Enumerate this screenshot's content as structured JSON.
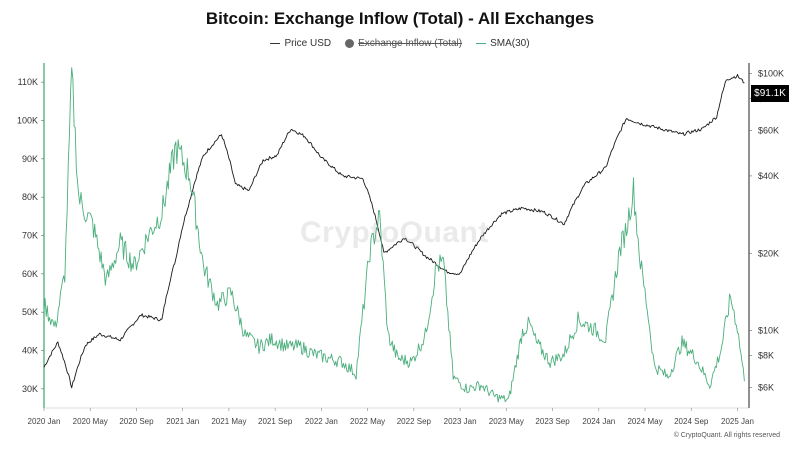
{
  "title": "Bitcoin: Exchange Inflow (Total) - All Exchanges",
  "legend": {
    "price": "Price USD",
    "inflow": "Exchange Inflow (Total)",
    "sma": "SMA(30)"
  },
  "watermark": "CryptoQuant",
  "price_badge": "$91.1K",
  "copyright": "© CryptoQuant. All rights reserved",
  "colors": {
    "price": "#1a1a1a",
    "sma": "#4caf7d",
    "axis_accent": "#3aa56e"
  },
  "chart_data": {
    "type": "line",
    "title": "Bitcoin: Exchange Inflow (Total) - All Exchanges",
    "x_ticks": [
      "2020 Jan",
      "2020 May",
      "2020 Sep",
      "2021 Jan",
      "2021 May",
      "2021 Sep",
      "2022 Jan",
      "2022 May",
      "2022 Sep",
      "2023 Jan",
      "2023 May",
      "2023 Sep",
      "2024 Jan",
      "2024 May",
      "2024 Sep",
      "2025 Jan"
    ],
    "y_left": {
      "ticks": [
        "30K",
        "40K",
        "50K",
        "60K",
        "70K",
        "80K",
        "90K",
        "100K",
        "110K"
      ],
      "range": [
        25000,
        115000
      ]
    },
    "y_right": {
      "ticks": [
        "$6K",
        "$8K",
        "$10K",
        "$20K",
        "$40K",
        "$60K",
        "$80K",
        "$100K"
      ],
      "scale": "log",
      "range": [
        5000,
        110000
      ]
    },
    "series": [
      {
        "name": "Price USD",
        "axis": "right",
        "x": [
          2020.0,
          2020.1,
          2020.2,
          2020.3,
          2020.4,
          2020.55,
          2020.7,
          2020.85,
          2020.95,
          2021.05,
          2021.15,
          2021.28,
          2021.38,
          2021.48,
          2021.58,
          2021.68,
          2021.78,
          2021.88,
          2022.0,
          2022.15,
          2022.3,
          2022.45,
          2022.6,
          2022.75,
          2022.9,
          2023.0,
          2023.15,
          2023.3,
          2023.45,
          2023.6,
          2023.75,
          2023.9,
          2024.05,
          2024.2,
          2024.3,
          2024.45,
          2024.6,
          2024.75,
          2024.85,
          2024.92,
          2025.0,
          2025.05
        ],
        "values": [
          7200,
          9000,
          6000,
          8800,
          9700,
          9200,
          11500,
          11000,
          19000,
          32000,
          48000,
          58000,
          37000,
          35000,
          46000,
          48000,
          61000,
          57000,
          47000,
          40000,
          39000,
          20000,
          23000,
          19500,
          17000,
          16600,
          23000,
          28500,
          30000,
          29000,
          26000,
          37000,
          43000,
          67000,
          64000,
          61000,
          58000,
          61000,
          68000,
          95000,
          98000,
          92000
        ]
      },
      {
        "name": "SMA(30)",
        "axis": "left",
        "x": [
          2020.0,
          2020.08,
          2020.15,
          2020.2,
          2020.25,
          2020.3,
          2020.35,
          2020.45,
          2020.55,
          2020.65,
          2020.75,
          2020.85,
          2020.95,
          2021.05,
          2021.15,
          2021.25,
          2021.35,
          2021.45,
          2021.55,
          2021.65,
          2021.75,
          2021.85,
          2021.95,
          2022.05,
          2022.15,
          2022.25,
          2022.35,
          2022.42,
          2022.48,
          2022.55,
          2022.65,
          2022.75,
          2022.83,
          2022.88,
          2022.95,
          2023.05,
          2023.15,
          2023.25,
          2023.35,
          2023.45,
          2023.5,
          2023.55,
          2023.65,
          2023.75,
          2023.85,
          2023.95,
          2024.05,
          2024.15,
          2024.2,
          2024.25,
          2024.3,
          2024.35,
          2024.4,
          2024.5,
          2024.6,
          2024.7,
          2024.8,
          2024.88,
          2024.95,
          2025.0,
          2025.05
        ],
        "values": [
          52000,
          46000,
          60000,
          112000,
          80000,
          76000,
          73000,
          58000,
          68000,
          62000,
          70000,
          76000,
          93000,
          86000,
          62000,
          52000,
          55000,
          44000,
          41000,
          43000,
          41000,
          41000,
          39000,
          38000,
          37000,
          34000,
          66000,
          75000,
          44000,
          38000,
          37000,
          44000,
          62000,
          63000,
          33000,
          30000,
          31000,
          28000,
          27000,
          45000,
          47000,
          42000,
          37000,
          39000,
          48000,
          46000,
          43000,
          66000,
          72000,
          82000,
          63000,
          51000,
          36000,
          33000,
          42000,
          38000,
          31000,
          40000,
          54000,
          46000,
          32000
        ]
      }
    ]
  }
}
